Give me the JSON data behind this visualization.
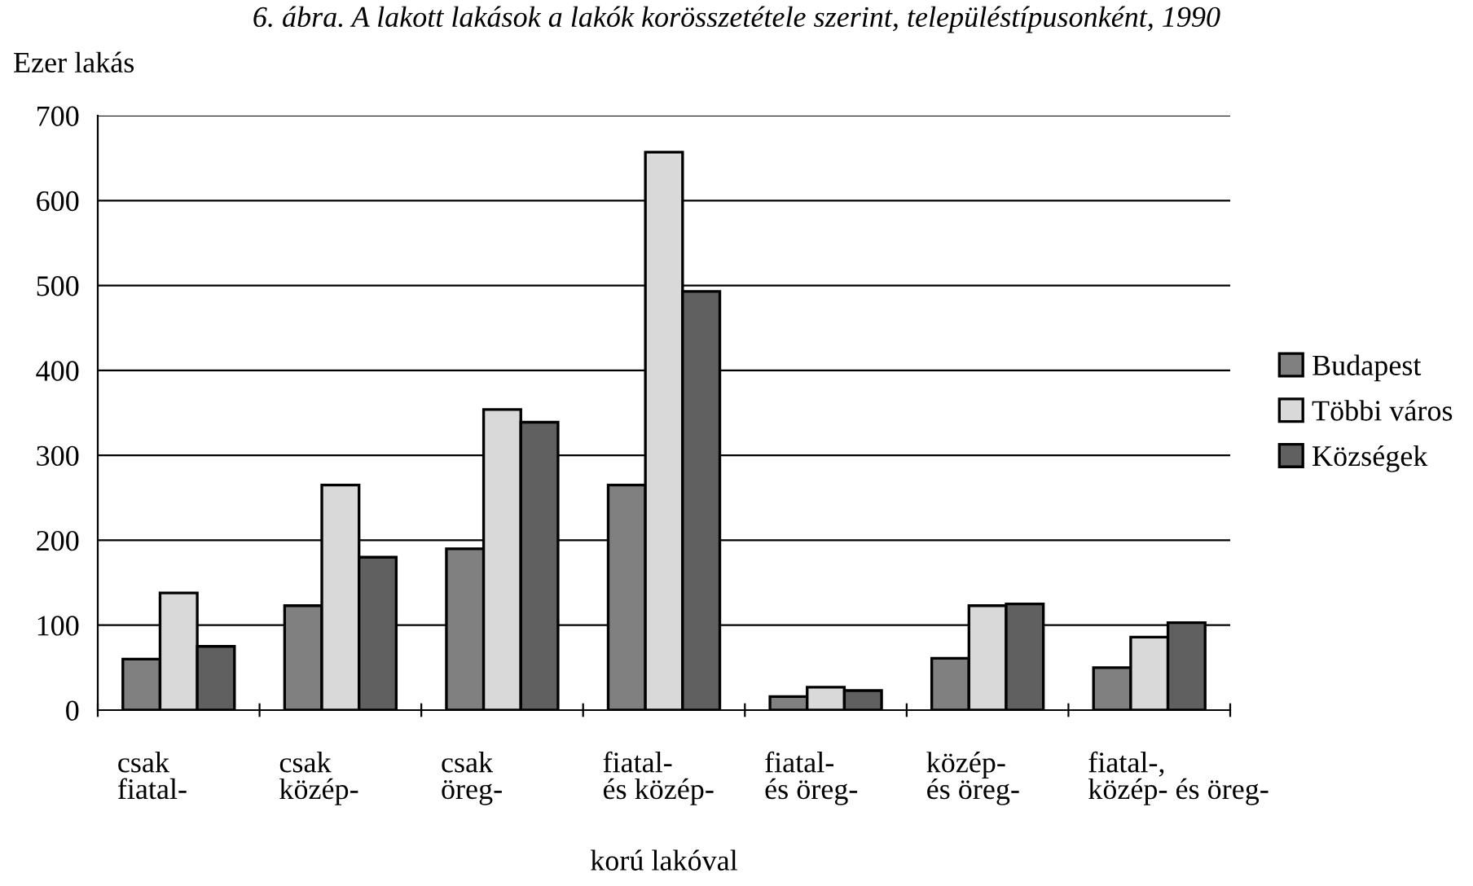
{
  "chart_data": {
    "type": "bar",
    "title": "6. ábra. A lakott lakások a lakók korösszetétele szerint, településtípusonként, 1990",
    "ylabel": "Ezer lakás",
    "xlabel": "korú lakóval",
    "categories": [
      "csak\nfiatal-",
      "csak\nközép-",
      "csak\nöreg-",
      "fiatal-\nés közép-",
      "fiatal-\nés öreg-",
      "közép-\nés öreg-",
      "fiatal-,\nközép- és öreg-"
    ],
    "series": [
      {
        "name": "Budapest",
        "color": "#808080",
        "values": [
          60,
          123,
          190,
          265,
          16,
          61,
          50
        ]
      },
      {
        "name": "Többi város",
        "color": "#d9d9d9",
        "values": [
          138,
          265,
          354,
          657,
          27,
          123,
          86
        ]
      },
      {
        "name": "Községek",
        "color": "#606060",
        "values": [
          75,
          180,
          339,
          493,
          23,
          125,
          103
        ]
      }
    ],
    "ylim": [
      0,
      700
    ],
    "yticks": [
      0,
      100,
      200,
      300,
      400,
      500,
      600,
      700
    ],
    "grid": "y",
    "legend": "right"
  }
}
